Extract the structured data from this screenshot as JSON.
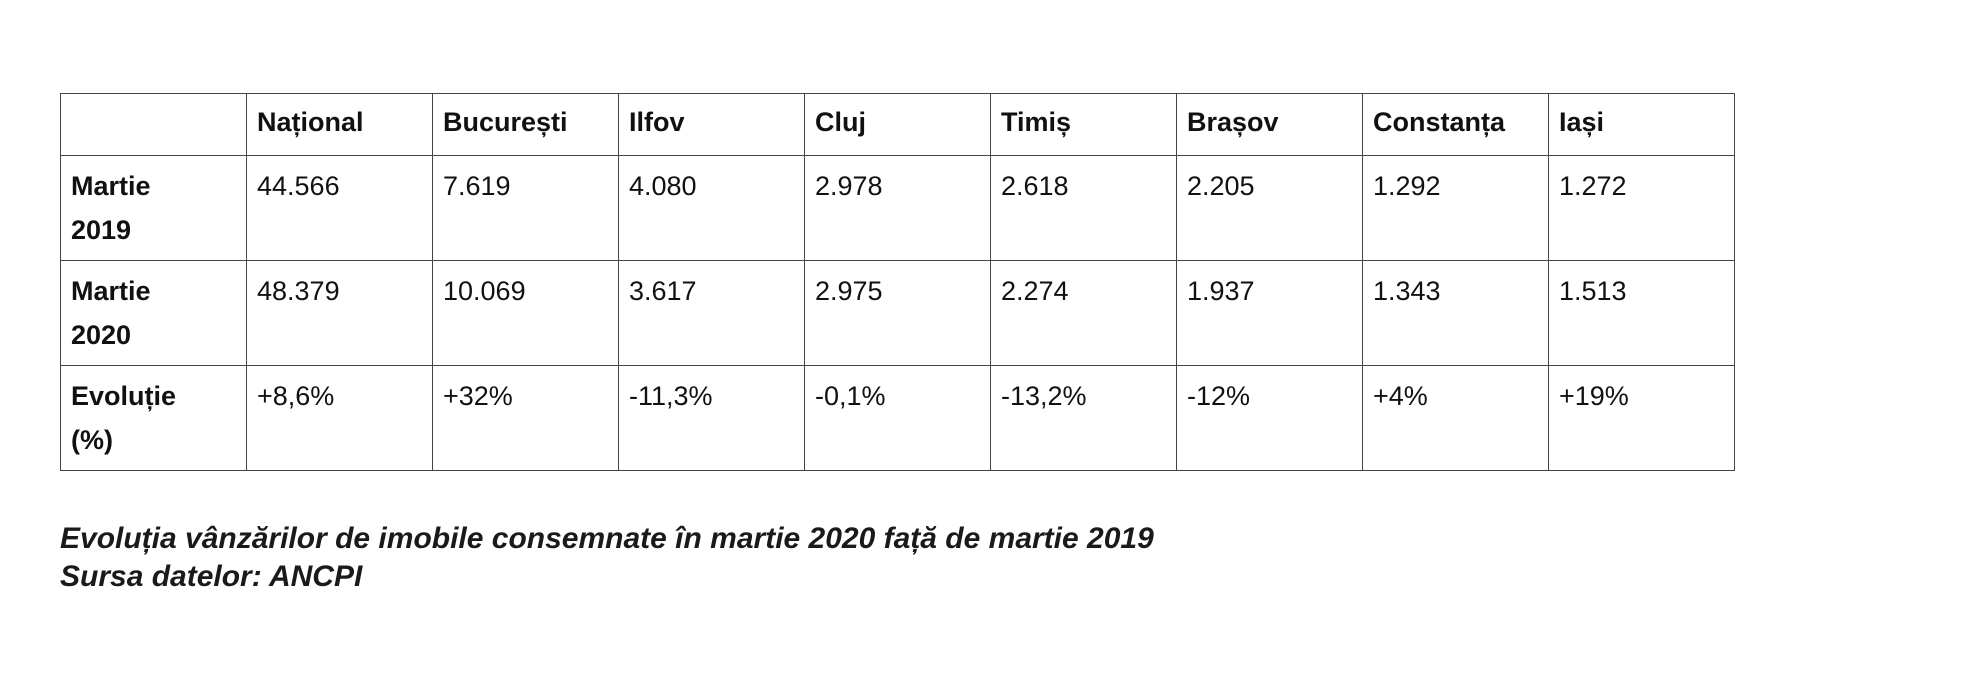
{
  "table": {
    "columns": [
      "",
      "Național",
      "București",
      "Ilfov",
      "Cluj",
      "Timiș",
      "Brașov",
      "Constanța",
      "Iași"
    ],
    "rows": [
      {
        "label": [
          "Martie",
          "2019"
        ],
        "values": [
          "44.566",
          "7.619",
          "4.080",
          "2.978",
          "2.618",
          "2.205",
          "1.292",
          "1.272"
        ]
      },
      {
        "label": [
          "Martie",
          "2020"
        ],
        "values": [
          "48.379",
          "10.069",
          "3.617",
          "2.975",
          "2.274",
          "1.937",
          "1.343",
          "1.513"
        ]
      },
      {
        "label": [
          "Evoluție",
          "(%)"
        ],
        "values": [
          "+8,6%",
          "+32%",
          "-11,3%",
          "-0,1%",
          "-13,2%",
          "-12%",
          "+4%",
          "+19%"
        ]
      }
    ]
  },
  "caption": {
    "line1": "Evoluția vânzărilor de imobile consemnate în martie 2020 față de martie 2019",
    "line2": "Sursa datelor: ANCPI"
  }
}
